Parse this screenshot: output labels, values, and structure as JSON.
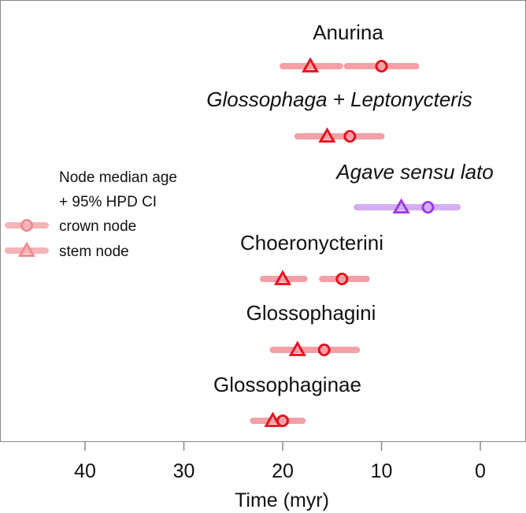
{
  "chart_data": {
    "type": "scatter",
    "title": "",
    "xlabel": "Time (myr)",
    "ylabel": "",
    "xlim": [
      45,
      -3
    ],
    "x_ticks": [
      40,
      30,
      20,
      10,
      0
    ],
    "grid": false,
    "legend": {
      "placement": "left-middle",
      "title_line1": "Node median age",
      "title_line2": "+ 95% HPD CI",
      "entries": [
        {
          "label": "crown node",
          "marker": "circle"
        },
        {
          "label": "stem node",
          "marker": "triangle"
        }
      ]
    },
    "colors": {
      "bat_marker": "#e8101e",
      "bat_ci": "#f3a0a6",
      "plant_marker": "#9a3be0",
      "plant_ci": "#d3aef0",
      "legend_marker": "#f48a8f",
      "legend_ci": "#f6b4b8",
      "axis": "#888888"
    },
    "groups": [
      {
        "label": "Anurina",
        "italic": false,
        "kind": "bat",
        "stem": {
          "median": 17.2,
          "ci": [
            20.0,
            14.2
          ]
        },
        "crown": {
          "median": 10.0,
          "ci": [
            13.5,
            6.5
          ]
        }
      },
      {
        "label": "Glossophaga + Leptonycteris",
        "italic": true,
        "kind": "bat",
        "stem": {
          "median": 15.5,
          "ci": [
            18.5,
            13.0
          ]
        },
        "crown": {
          "median": 13.2,
          "ci": [
            15.5,
            10.0
          ]
        }
      },
      {
        "label": "Agave sensu lato",
        "italic": true,
        "kind": "plant",
        "stem": {
          "median": 8.0,
          "ci": [
            12.5,
            4.5
          ]
        },
        "crown": {
          "median": 5.3,
          "ci": [
            8.0,
            2.3
          ]
        }
      },
      {
        "label": "Choeronycterini",
        "italic": false,
        "kind": "bat",
        "stem": {
          "median": 20.0,
          "ci": [
            22.0,
            17.8
          ]
        },
        "crown": {
          "median": 14.0,
          "ci": [
            16.0,
            11.5
          ]
        }
      },
      {
        "label": "Glossophagini",
        "italic": false,
        "kind": "bat",
        "stem": {
          "median": 18.5,
          "ci": [
            21.0,
            16.5
          ]
        },
        "crown": {
          "median": 15.8,
          "ci": [
            18.5,
            12.5
          ]
        }
      },
      {
        "label": "Glossophaginae",
        "italic": false,
        "kind": "bat",
        "stem": {
          "median": 21.0,
          "ci": [
            23.0,
            19.5
          ]
        },
        "crown": {
          "median": 20.0,
          "ci": [
            21.5,
            18.0
          ]
        }
      }
    ]
  }
}
